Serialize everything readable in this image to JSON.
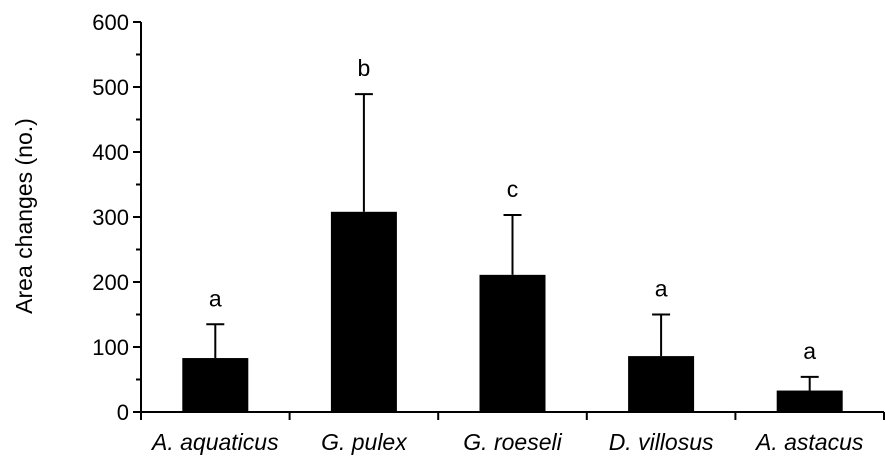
{
  "chart_data": {
    "type": "bar",
    "categories": [
      "A. aquaticus",
      "G. pulex",
      "G. roeseli",
      "D. villosus",
      "A. astacus"
    ],
    "values": [
      83,
      308,
      211,
      86,
      33
    ],
    "error_upper": [
      135,
      489,
      303,
      150,
      54
    ],
    "significance_labels": [
      "a",
      "b",
      "c",
      "a",
      "a"
    ],
    "title": "",
    "xlabel": "",
    "ylabel": "Area changes (no.)",
    "ylim": [
      0,
      600
    ],
    "yticks": [
      "0",
      "100",
      "200",
      "300",
      "400",
      "500",
      "600"
    ],
    "grid": false,
    "bar_color": "#000000"
  }
}
